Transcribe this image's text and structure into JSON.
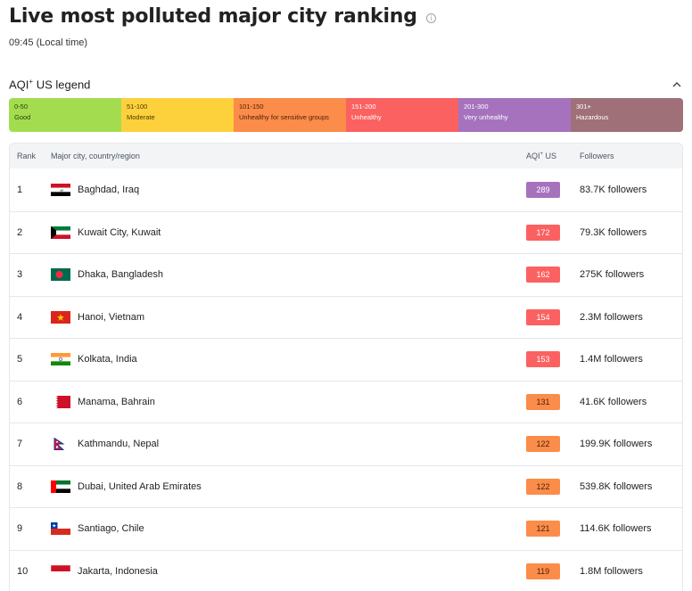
{
  "header": {
    "title": "Live most polluted major city ranking",
    "info_icon": "info-icon",
    "local_time": "09:45 (Local time)"
  },
  "legend": {
    "title": "AQI",
    "title_sup": "+",
    "title_suffix": " US legend",
    "segments": [
      {
        "range": "0-50",
        "label": "Good",
        "color": "#a3dd4f",
        "text_color": "#2d3b12"
      },
      {
        "range": "51-100",
        "label": "Moderate",
        "color": "#fdd13c",
        "text_color": "#4a3b05"
      },
      {
        "range": "101-150",
        "label": "Unhealthy for sensitive groups",
        "color": "#fb8c4a",
        "text_color": "#4a1f05"
      },
      {
        "range": "151-200",
        "label": "Unhealthy",
        "color": "#fb6161",
        "text_color": "#ffffff"
      },
      {
        "range": "201-300",
        "label": "Very unhealthy",
        "color": "#a672bd",
        "text_color": "#ffffff"
      },
      {
        "range": "301+",
        "label": "Hazardous",
        "color": "#a07079",
        "text_color": "#ffffff"
      }
    ]
  },
  "table": {
    "headers": {
      "rank": "Rank",
      "city": "Major city, country/region",
      "aqi": "AQI",
      "aqi_sup": "+",
      "aqi_suffix": " US",
      "followers": "Followers"
    },
    "rows": [
      {
        "rank": "1",
        "city": "Baghdad, Iraq",
        "flag": "iraq",
        "aqi": "289",
        "aqi_color": "#a672bd",
        "aqi_text": "#ffffff",
        "followers": "83.7K followers"
      },
      {
        "rank": "2",
        "city": "Kuwait City, Kuwait",
        "flag": "kuwait",
        "aqi": "172",
        "aqi_color": "#fb6161",
        "aqi_text": "#ffffff",
        "followers": "79.3K followers"
      },
      {
        "rank": "3",
        "city": "Dhaka, Bangladesh",
        "flag": "bangladesh",
        "aqi": "162",
        "aqi_color": "#fb6161",
        "aqi_text": "#ffffff",
        "followers": "275K followers"
      },
      {
        "rank": "4",
        "city": "Hanoi, Vietnam",
        "flag": "vietnam",
        "aqi": "154",
        "aqi_color": "#fb6161",
        "aqi_text": "#ffffff",
        "followers": "2.3M followers"
      },
      {
        "rank": "5",
        "city": "Kolkata, India",
        "flag": "india",
        "aqi": "153",
        "aqi_color": "#fb6161",
        "aqi_text": "#ffffff",
        "followers": "1.4M followers"
      },
      {
        "rank": "6",
        "city": "Manama, Bahrain",
        "flag": "bahrain",
        "aqi": "131",
        "aqi_color": "#fb8c4a",
        "aqi_text": "#4a1f05",
        "followers": "41.6K followers"
      },
      {
        "rank": "7",
        "city": "Kathmandu, Nepal",
        "flag": "nepal",
        "aqi": "122",
        "aqi_color": "#fb8c4a",
        "aqi_text": "#4a1f05",
        "followers": "199.9K followers"
      },
      {
        "rank": "8",
        "city": "Dubai, United Arab Emirates",
        "flag": "uae",
        "aqi": "122",
        "aqi_color": "#fb8c4a",
        "aqi_text": "#4a1f05",
        "followers": "539.8K followers"
      },
      {
        "rank": "9",
        "city": "Santiago, Chile",
        "flag": "chile",
        "aqi": "121",
        "aqi_color": "#fb8c4a",
        "aqi_text": "#4a1f05",
        "followers": "114.6K followers"
      },
      {
        "rank": "10",
        "city": "Jakarta, Indonesia",
        "flag": "indonesia",
        "aqi": "119",
        "aqi_color": "#fb8c4a",
        "aqi_text": "#4a1f05",
        "followers": "1.8M followers"
      }
    ]
  }
}
